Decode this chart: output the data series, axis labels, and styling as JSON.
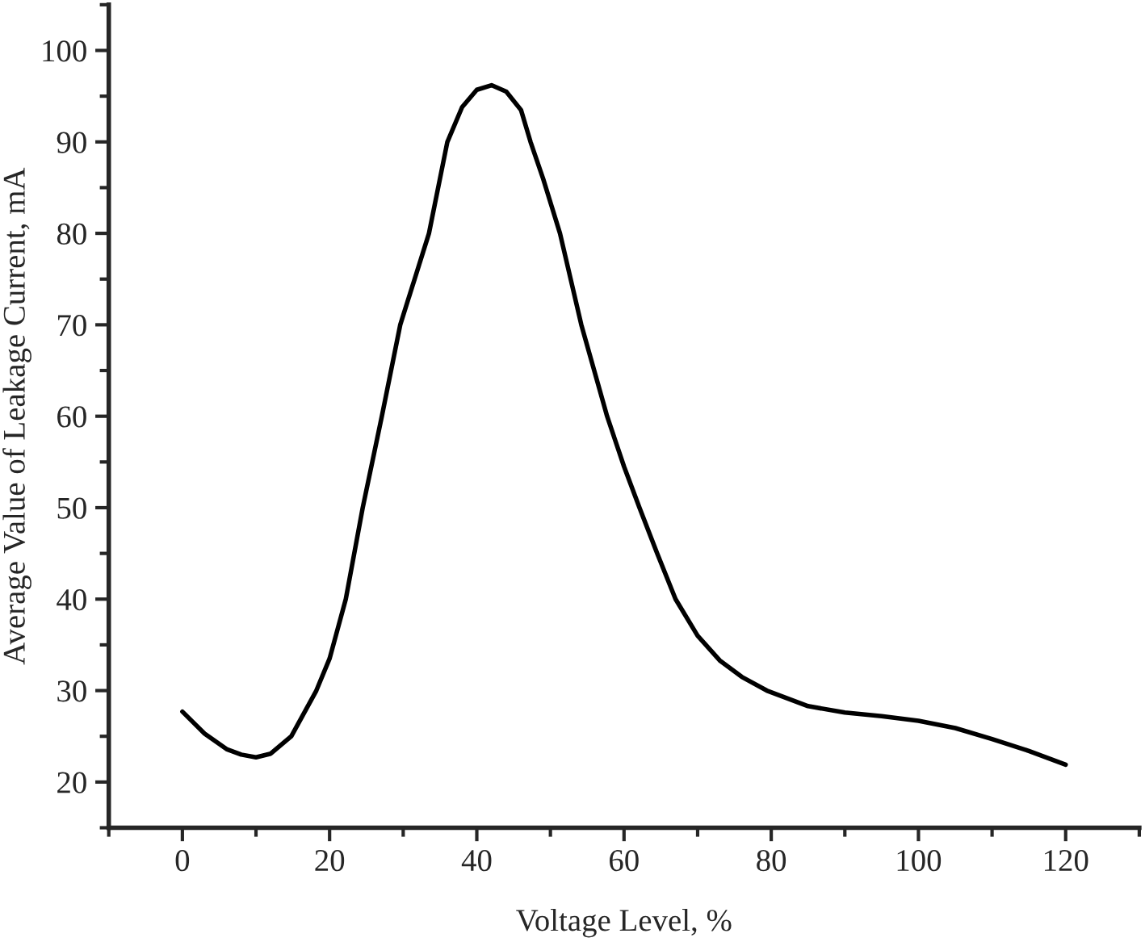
{
  "chart_data": {
    "type": "line",
    "xlabel": "Voltage Level, %",
    "ylabel": "Average Value of Leakage Current, mA",
    "x": [
      0,
      3,
      6,
      8,
      10,
      12,
      14.8,
      18.2,
      20,
      22.2,
      24.5,
      27.1,
      29.6,
      33.5,
      36,
      38,
      40,
      42,
      44,
      46,
      47.3,
      49,
      51.3,
      54.2,
      57.7,
      60,
      62.1,
      64.5,
      67,
      70,
      73,
      76,
      79.4,
      85,
      90,
      95,
      100,
      105,
      110,
      115,
      120
    ],
    "series": [
      {
        "color": "#000000",
        "values": [
          27.7,
          25.3,
          23.6,
          23.0,
          22.7,
          23.1,
          25,
          30,
          33.5,
          40,
          50,
          60,
          70,
          80,
          90,
          93.8,
          95.7,
          96.2,
          95.5,
          93.5,
          90,
          86,
          80,
          70,
          60,
          54.5,
          50,
          45,
          40,
          36,
          33.3,
          31.5,
          30,
          28.3,
          27.6,
          27.2,
          26.7,
          25.9,
          24.7,
          23.4,
          21.9
        ]
      }
    ],
    "xlim": [
      -10,
      130
    ],
    "ylim": [
      15,
      105
    ],
    "xticks": [
      {
        "value": -10,
        "label": null
      },
      0,
      {
        "value": 10,
        "label": null
      },
      20,
      {
        "value": 30,
        "label": null
      },
      40,
      {
        "value": 50,
        "label": null
      },
      60,
      {
        "value": 70,
        "label": null
      },
      80,
      {
        "value": 90,
        "label": null
      },
      100,
      {
        "value": 110,
        "label": null
      },
      120,
      {
        "value": 130,
        "label": null
      }
    ],
    "yticks": [
      {
        "value": 15,
        "label": null
      },
      20,
      {
        "value": 25,
        "label": null
      },
      30,
      {
        "value": 35,
        "label": null
      },
      40,
      {
        "value": 45,
        "label": null
      },
      50,
      {
        "value": 55,
        "label": null
      },
      60,
      {
        "value": 65,
        "label": null
      },
      70,
      {
        "value": 75,
        "label": null
      },
      80,
      {
        "value": 85,
        "label": null
      },
      90,
      {
        "value": 95,
        "label": null
      },
      100,
      {
        "value": 105,
        "label": null
      }
    ],
    "grid": false,
    "legend": false,
    "marker": "none",
    "line_style": "solid"
  }
}
